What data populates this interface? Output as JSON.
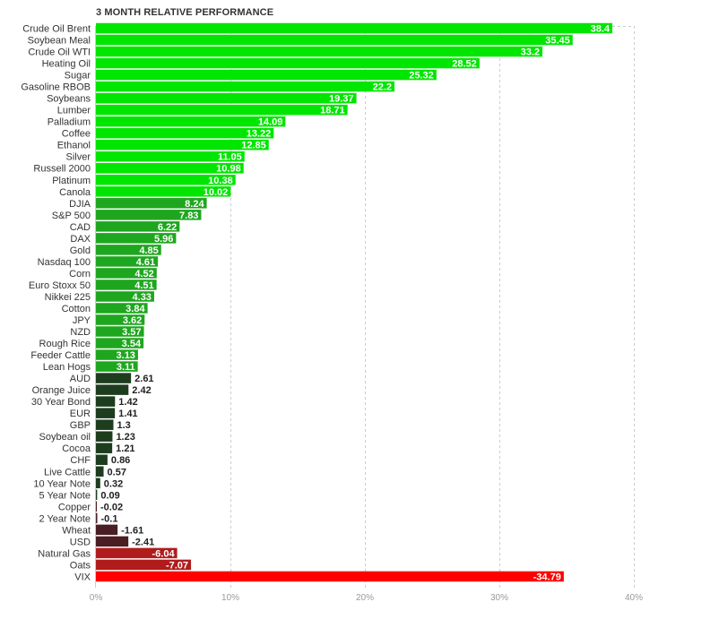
{
  "chart_data": {
    "type": "bar",
    "orientation": "horizontal",
    "title": "3 MONTH RELATIVE PERFORMANCE",
    "xlabel": "",
    "ylabel": "",
    "xlim": [
      0,
      40
    ],
    "x_unit": "%",
    "x_ticks": [
      0,
      10,
      20,
      30,
      40
    ],
    "x_tick_labels": [
      "0%",
      "10%",
      "20%",
      "30%",
      "40%"
    ],
    "grid": "vertical dashed",
    "categories": [
      "Crude Oil Brent",
      "Soybean Meal",
      "Crude Oil WTI",
      "Heating Oil",
      "Sugar",
      "Gasoline RBOB",
      "Soybeans",
      "Lumber",
      "Palladium",
      "Coffee",
      "Ethanol",
      "Silver",
      "Russell 2000",
      "Platinum",
      "Canola",
      "DJIA",
      "S&P 500",
      "CAD",
      "DAX",
      "Gold",
      "Nasdaq 100",
      "Corn",
      "Euro Stoxx 50",
      "Nikkei 225",
      "Cotton",
      "JPY",
      "NZD",
      "Rough Rice",
      "Feeder Cattle",
      "Lean Hogs",
      "AUD",
      "Orange Juice",
      "30 Year Bond",
      "EUR",
      "GBP",
      "Soybean oil",
      "Cocoa",
      "CHF",
      "Live Cattle",
      "10 Year Note",
      "5 Year Note",
      "Copper",
      "2 Year Note",
      "Wheat",
      "USD",
      "Natural Gas",
      "Oats",
      "VIX"
    ],
    "values": [
      38.4,
      35.45,
      33.2,
      28.52,
      25.32,
      22.2,
      19.37,
      18.71,
      14.09,
      13.22,
      12.85,
      11.05,
      10.98,
      10.38,
      10.02,
      8.24,
      7.83,
      6.22,
      5.96,
      4.85,
      4.61,
      4.52,
      4.51,
      4.33,
      3.84,
      3.62,
      3.57,
      3.54,
      3.13,
      3.11,
      2.61,
      2.42,
      1.42,
      1.41,
      1.3,
      1.23,
      1.21,
      0.86,
      0.57,
      0.32,
      0.09,
      -0.02,
      -0.1,
      -1.61,
      -2.41,
      -6.04,
      -7.07,
      -34.79
    ],
    "value_labels": [
      "38.4",
      "35.45",
      "33.2",
      "28.52",
      "25.32",
      "22.2",
      "19.37",
      "18.71",
      "14.09",
      "13.22",
      "12.85",
      "11.05",
      "10.98",
      "10.38",
      "10.02",
      "8.24",
      "7.83",
      "6.22",
      "5.96",
      "4.85",
      "4.61",
      "4.52",
      "4.51",
      "4.33",
      "3.84",
      "3.62",
      "3.57",
      "3.54",
      "3.13",
      "3.11",
      "2.61",
      "2.42",
      "1.42",
      "1.41",
      "1.3",
      "1.23",
      "1.21",
      "0.86",
      "0.57",
      "0.32",
      "0.09",
      "-0.02",
      "-0.1",
      "-1.61",
      "-2.41",
      "-6.04",
      "-7.07",
      "-34.79"
    ],
    "bar_magnitude": "absolute value measured from 0 to the right",
    "colors": {
      "positive_strong": "#00e600",
      "positive_mid": "#1fa61f",
      "positive_weak": "#1e3d1e",
      "negative_weak": "#4a1e22",
      "negative_mid": "#b01c1c",
      "negative_strong": "#ff0000",
      "label_dark": "#222222",
      "label_light": "#ffffff",
      "grid": "#cccccc",
      "axis_label": "#999999"
    }
  }
}
